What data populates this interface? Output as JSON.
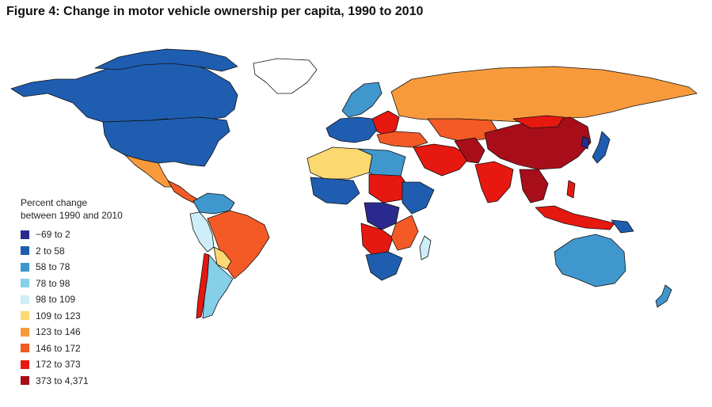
{
  "title": "Figure 4: Change in motor vehicle ownership per capita, 1990 to 2010",
  "legend": {
    "heading_line1": "Percent change",
    "heading_line2": "between 1990 and 2010",
    "items": [
      {
        "label": "−69 to 2",
        "color": "#2a2a8e"
      },
      {
        "label": "2 to 58",
        "color": "#1f5db0"
      },
      {
        "label": "58 to 78",
        "color": "#3f97cd"
      },
      {
        "label": "78 to 98",
        "color": "#85cfe8"
      },
      {
        "label": "98 to 109",
        "color": "#cdeef8"
      },
      {
        "label": "109 to 123",
        "color": "#fbd970"
      },
      {
        "label": "123 to 146",
        "color": "#f89a3b"
      },
      {
        "label": "146 to 172",
        "color": "#f45a26"
      },
      {
        "label": "172 to 373",
        "color": "#e6180f"
      },
      {
        "label": "373 to 4,371",
        "color": "#a80e1a"
      }
    ]
  }
}
